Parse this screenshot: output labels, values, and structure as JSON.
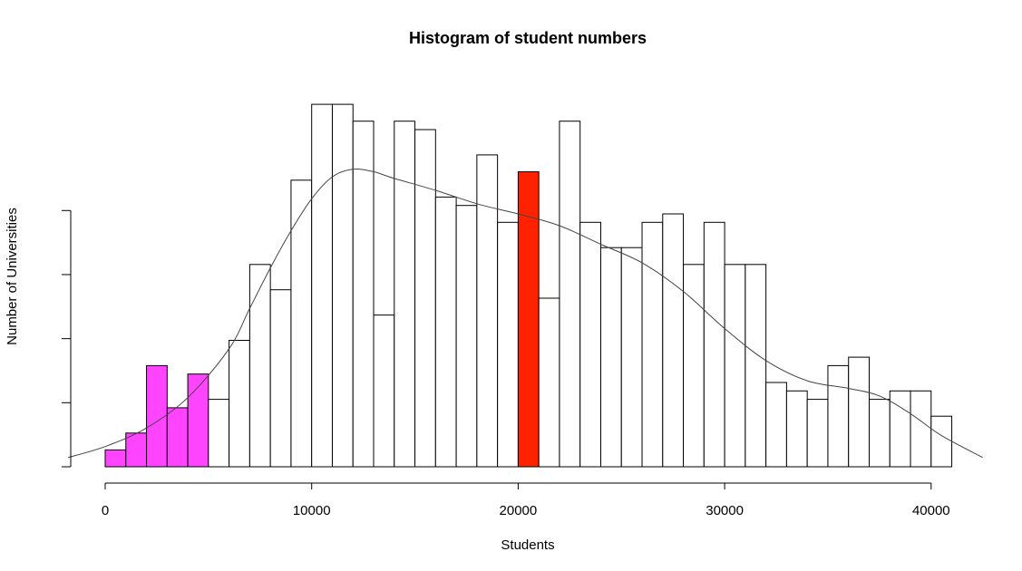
{
  "chart_data": {
    "type": "bar",
    "title": "Histogram of student numbers",
    "xlabel": "Students",
    "ylabel": "Number of Universities",
    "x_ticks": [
      0,
      10000,
      20000,
      30000,
      40000
    ],
    "x_tick_labels": [
      "0",
      "10000",
      "20000",
      "30000",
      "40000"
    ],
    "bin_width": 1000,
    "bin_starts": [
      0,
      1000,
      2000,
      3000,
      4000,
      5000,
      6000,
      7000,
      8000,
      9000,
      10000,
      11000,
      12000,
      13000,
      14000,
      15000,
      16000,
      17000,
      18000,
      19000,
      20000,
      21000,
      22000,
      23000,
      24000,
      25000,
      26000,
      27000,
      28000,
      29000,
      30000,
      31000,
      32000,
      33000,
      34000,
      35000,
      36000,
      37000,
      38000,
      39000,
      40000
    ],
    "values": [
      2,
      4,
      12,
      7,
      11,
      8,
      15,
      24,
      21,
      34,
      43,
      43,
      41,
      18,
      41,
      40,
      32,
      31,
      37,
      29,
      35,
      20,
      41,
      29,
      26,
      26,
      29,
      30,
      24,
      29,
      24,
      24,
      10,
      9,
      8,
      12,
      13,
      8,
      9,
      9,
      6
    ],
    "ylim": [
      0,
      45
    ],
    "y_ticks": [
      0,
      7.6,
      15.2,
      22.8,
      30.4
    ],
    "y_tick_labels_shown": false,
    "highlight_bins": [
      {
        "bin_start": 0,
        "color": "#ff44ff"
      },
      {
        "bin_start": 1000,
        "color": "#ff44ff"
      },
      {
        "bin_start": 2000,
        "color": "#ff44ff"
      },
      {
        "bin_start": 3000,
        "color": "#ff44ff"
      },
      {
        "bin_start": 4000,
        "color": "#ff44ff"
      },
      {
        "bin_start": 20000,
        "color": "#ff2200"
      }
    ],
    "default_bar_fill": "#ffffff",
    "bar_stroke": "#000000",
    "density_curve": {
      "x": [
        -1800,
        0,
        2000,
        4000,
        6000,
        7000,
        8000,
        9000,
        10000,
        11000,
        12000,
        13000,
        14000,
        16000,
        18000,
        20000,
        22000,
        24000,
        26000,
        28000,
        30000,
        32000,
        34000,
        36000,
        37500,
        39000,
        40500,
        42500
      ],
      "y": [
        1.1,
        2.4,
        4.6,
        8.2,
        14.0,
        18.8,
        23.6,
        28.0,
        31.8,
        34.4,
        35.3,
        35.0,
        34.2,
        32.8,
        31.2,
        30.0,
        28.6,
        26.4,
        24.2,
        20.8,
        16.4,
        12.6,
        10.2,
        9.3,
        8.4,
        6.3,
        3.7,
        1.1
      ],
      "color": "#444444"
    },
    "grid": false,
    "legend": "none"
  }
}
